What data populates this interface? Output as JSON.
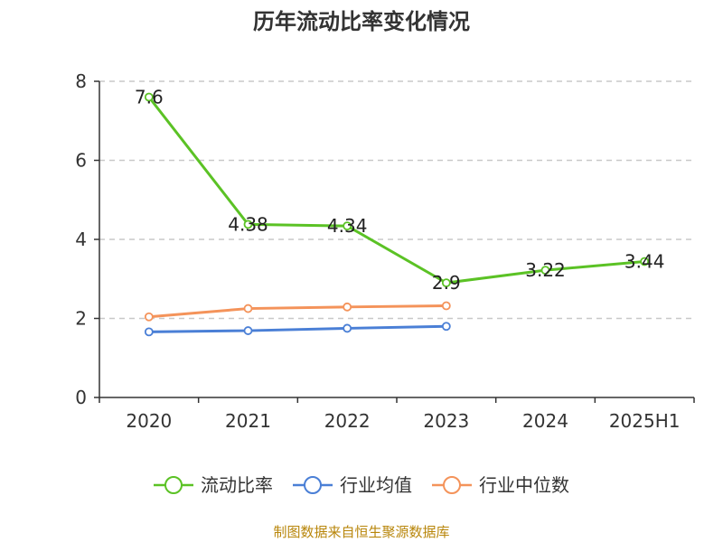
{
  "chart_data": {
    "type": "line",
    "title": "历年流动比率变化情况",
    "categories": [
      "2020",
      "2021",
      "2022",
      "2023",
      "2024",
      "2025H1"
    ],
    "ylim": [
      0,
      8
    ],
    "yticks": [
      0,
      2,
      4,
      6,
      8
    ],
    "grid": true,
    "legend_position": "bottom",
    "series": [
      {
        "name": "流动比率",
        "color": "#5bc225",
        "values": [
          7.6,
          4.38,
          4.34,
          2.9,
          3.22,
          3.44
        ],
        "labels": [
          "7.6",
          "4.38",
          "4.34",
          "2.9",
          "3.22",
          "3.44"
        ]
      },
      {
        "name": "行业均值",
        "color": "#4a7fd6",
        "values": [
          1.66,
          1.69,
          1.75,
          1.8,
          null,
          null
        ],
        "labels": null
      },
      {
        "name": "行业中位数",
        "color": "#f4935a",
        "values": [
          2.04,
          2.25,
          2.29,
          2.32,
          null,
          null
        ],
        "labels": null
      }
    ]
  },
  "footer": {
    "source": "制图数据来自恒生聚源数据库"
  }
}
